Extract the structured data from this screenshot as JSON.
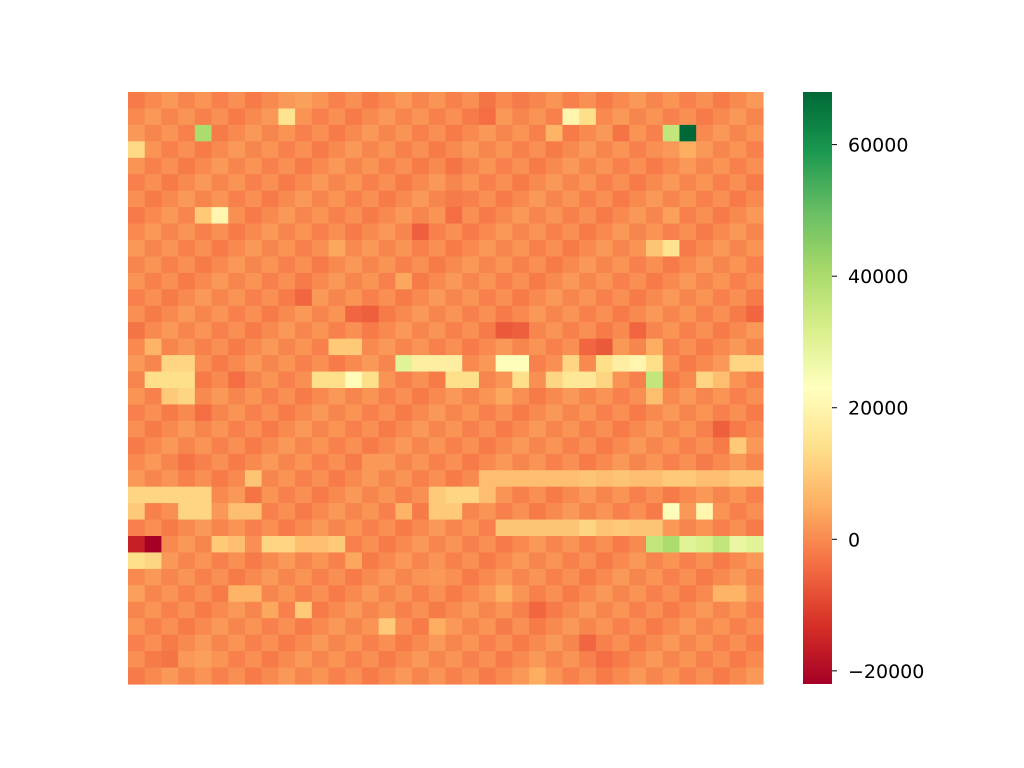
{
  "chart_data": {
    "type": "heatmap",
    "title": "",
    "xlabel": "",
    "ylabel": "",
    "n_cols": 38,
    "n_rows": 36,
    "colorscale": "RdYlGn",
    "colorbar": {
      "min": -22000,
      "max": 68000,
      "ticks": [
        60000,
        40000,
        20000,
        0,
        -20000
      ],
      "tick_labels": [
        "60000",
        "40000",
        "20000",
        "0",
        "−20000"
      ]
    },
    "base_value": 0,
    "cells": [
      {
        "r": 0,
        "c": 10,
        "v": 3000
      },
      {
        "r": 0,
        "c": 21,
        "v": -3000
      },
      {
        "r": 0,
        "c": 23,
        "v": -2000
      },
      {
        "r": 1,
        "c": 9,
        "v": 15000
      },
      {
        "r": 1,
        "c": 21,
        "v": -4000
      },
      {
        "r": 1,
        "c": 26,
        "v": 20000
      },
      {
        "r": 1,
        "c": 27,
        "v": 14000
      },
      {
        "r": 2,
        "c": 4,
        "v": 40000
      },
      {
        "r": 2,
        "c": 25,
        "v": 6000
      },
      {
        "r": 2,
        "c": 29,
        "v": -3000
      },
      {
        "r": 2,
        "c": 32,
        "v": 36000
      },
      {
        "r": 2,
        "c": 33,
        "v": 68000
      },
      {
        "r": 3,
        "c": 0,
        "v": 13000
      },
      {
        "r": 3,
        "c": 32,
        "v": 2000
      },
      {
        "r": 3,
        "c": 33,
        "v": 5000
      },
      {
        "r": 4,
        "c": 19,
        "v": -3000
      },
      {
        "r": 6,
        "c": 19,
        "v": -2000
      },
      {
        "r": 7,
        "c": 4,
        "v": 10000
      },
      {
        "r": 7,
        "c": 5,
        "v": 20000
      },
      {
        "r": 7,
        "c": 19,
        "v": -4000
      },
      {
        "r": 7,
        "c": 32,
        "v": 3000
      },
      {
        "r": 8,
        "c": 17,
        "v": -6000
      },
      {
        "r": 9,
        "c": 12,
        "v": 4000
      },
      {
        "r": 9,
        "c": 31,
        "v": 9000
      },
      {
        "r": 9,
        "c": 32,
        "v": 15000
      },
      {
        "r": 11,
        "c": 16,
        "v": 4000
      },
      {
        "r": 12,
        "c": 10,
        "v": -5000
      },
      {
        "r": 13,
        "c": 13,
        "v": -5000
      },
      {
        "r": 13,
        "c": 14,
        "v": -6000
      },
      {
        "r": 13,
        "c": 37,
        "v": -5000
      },
      {
        "r": 14,
        "c": 0,
        "v": -3000
      },
      {
        "r": 14,
        "c": 22,
        "v": -7000
      },
      {
        "r": 14,
        "c": 23,
        "v": -6000
      },
      {
        "r": 14,
        "c": 30,
        "v": -5000
      },
      {
        "r": 15,
        "c": 1,
        "v": 6000
      },
      {
        "r": 15,
        "c": 12,
        "v": 10000
      },
      {
        "r": 15,
        "c": 13,
        "v": 10000
      },
      {
        "r": 15,
        "c": 27,
        "v": -5000
      },
      {
        "r": 15,
        "c": 28,
        "v": -7000
      },
      {
        "r": 15,
        "c": 31,
        "v": 5000
      },
      {
        "r": 16,
        "c": 2,
        "v": 12000
      },
      {
        "r": 16,
        "c": 3,
        "v": 12000
      },
      {
        "r": 16,
        "c": 16,
        "v": 30000
      },
      {
        "r": 16,
        "c": 17,
        "v": 18000
      },
      {
        "r": 16,
        "c": 18,
        "v": 18000
      },
      {
        "r": 16,
        "c": 19,
        "v": 18000
      },
      {
        "r": 16,
        "c": 22,
        "v": 24000
      },
      {
        "r": 16,
        "c": 23,
        "v": 24000
      },
      {
        "r": 16,
        "c": 26,
        "v": 12000
      },
      {
        "r": 16,
        "c": 28,
        "v": 14000
      },
      {
        "r": 16,
        "c": 29,
        "v": 18000
      },
      {
        "r": 16,
        "c": 30,
        "v": 20000
      },
      {
        "r": 16,
        "c": 31,
        "v": 14000
      },
      {
        "r": 16,
        "c": 36,
        "v": 12000
      },
      {
        "r": 16,
        "c": 37,
        "v": 12000
      },
      {
        "r": 17,
        "c": 1,
        "v": 14000
      },
      {
        "r": 17,
        "c": 2,
        "v": 14000
      },
      {
        "r": 17,
        "c": 3,
        "v": 14000
      },
      {
        "r": 17,
        "c": 6,
        "v": -4000
      },
      {
        "r": 17,
        "c": 11,
        "v": 14000
      },
      {
        "r": 17,
        "c": 12,
        "v": 14000
      },
      {
        "r": 17,
        "c": 13,
        "v": 22000
      },
      {
        "r": 17,
        "c": 14,
        "v": 14000
      },
      {
        "r": 17,
        "c": 19,
        "v": 14000
      },
      {
        "r": 17,
        "c": 20,
        "v": 14000
      },
      {
        "r": 17,
        "c": 23,
        "v": 14000
      },
      {
        "r": 17,
        "c": 25,
        "v": 12000
      },
      {
        "r": 17,
        "c": 26,
        "v": 16000
      },
      {
        "r": 17,
        "c": 27,
        "v": 16000
      },
      {
        "r": 17,
        "c": 28,
        "v": 12000
      },
      {
        "r": 17,
        "c": 31,
        "v": 36000
      },
      {
        "r": 17,
        "c": 34,
        "v": 12000
      },
      {
        "r": 17,
        "c": 35,
        "v": 8000
      },
      {
        "r": 18,
        "c": 2,
        "v": 10000
      },
      {
        "r": 18,
        "c": 3,
        "v": 12000
      },
      {
        "r": 18,
        "c": 22,
        "v": 4000
      },
      {
        "r": 18,
        "c": 31,
        "v": 8000
      },
      {
        "r": 19,
        "c": 4,
        "v": -4000
      },
      {
        "r": 20,
        "c": 35,
        "v": -6000
      },
      {
        "r": 21,
        "c": 36,
        "v": 10000
      },
      {
        "r": 22,
        "c": 3,
        "v": -3000
      },
      {
        "r": 22,
        "c": 34,
        "v": -2000
      },
      {
        "r": 22,
        "c": 14,
        "v": 2000
      },
      {
        "r": 23,
        "c": 21,
        "v": 8000
      },
      {
        "r": 23,
        "c": 22,
        "v": 8000
      },
      {
        "r": 23,
        "c": 23,
        "v": 8000
      },
      {
        "r": 23,
        "c": 24,
        "v": 8000
      },
      {
        "r": 23,
        "c": 25,
        "v": 8000
      },
      {
        "r": 23,
        "c": 26,
        "v": 8000
      },
      {
        "r": 23,
        "c": 27,
        "v": 9000
      },
      {
        "r": 23,
        "c": 28,
        "v": 8000
      },
      {
        "r": 23,
        "c": 29,
        "v": 9000
      },
      {
        "r": 23,
        "c": 30,
        "v": 8000
      },
      {
        "r": 23,
        "c": 31,
        "v": 8000
      },
      {
        "r": 23,
        "c": 32,
        "v": 10000
      },
      {
        "r": 23,
        "c": 33,
        "v": 10000
      },
      {
        "r": 23,
        "c": 34,
        "v": 8000
      },
      {
        "r": 23,
        "c": 35,
        "v": 8000
      },
      {
        "r": 23,
        "c": 36,
        "v": 10000
      },
      {
        "r": 23,
        "c": 37,
        "v": 10000
      },
      {
        "r": 23,
        "c": 7,
        "v": 9000
      },
      {
        "r": 24,
        "c": 0,
        "v": 12000
      },
      {
        "r": 24,
        "c": 1,
        "v": 12000
      },
      {
        "r": 24,
        "c": 2,
        "v": 12000
      },
      {
        "r": 24,
        "c": 3,
        "v": 12000
      },
      {
        "r": 24,
        "c": 4,
        "v": 12000
      },
      {
        "r": 24,
        "c": 18,
        "v": 10000
      },
      {
        "r": 24,
        "c": 19,
        "v": 12000
      },
      {
        "r": 24,
        "c": 20,
        "v": 12000
      },
      {
        "r": 24,
        "c": 21,
        "v": 8000
      },
      {
        "r": 24,
        "c": 7,
        "v": -3000
      },
      {
        "r": 25,
        "c": 0,
        "v": 10000
      },
      {
        "r": 25,
        "c": 3,
        "v": 12000
      },
      {
        "r": 25,
        "c": 4,
        "v": 12000
      },
      {
        "r": 25,
        "c": 6,
        "v": 8000
      },
      {
        "r": 25,
        "c": 7,
        "v": 8000
      },
      {
        "r": 25,
        "c": 16,
        "v": 6000
      },
      {
        "r": 25,
        "c": 18,
        "v": 10000
      },
      {
        "r": 25,
        "c": 19,
        "v": 10000
      },
      {
        "r": 25,
        "c": 32,
        "v": 24000
      },
      {
        "r": 25,
        "c": 34,
        "v": 20000
      },
      {
        "r": 26,
        "c": 22,
        "v": 9000
      },
      {
        "r": 26,
        "c": 23,
        "v": 9000
      },
      {
        "r": 26,
        "c": 24,
        "v": 9000
      },
      {
        "r": 26,
        "c": 25,
        "v": 9000
      },
      {
        "r": 26,
        "c": 26,
        "v": 9000
      },
      {
        "r": 26,
        "c": 27,
        "v": 12000
      },
      {
        "r": 26,
        "c": 28,
        "v": 9000
      },
      {
        "r": 26,
        "c": 29,
        "v": 10000
      },
      {
        "r": 26,
        "c": 30,
        "v": 9000
      },
      {
        "r": 26,
        "c": 31,
        "v": 9000
      },
      {
        "r": 27,
        "c": 0,
        "v": -16000
      },
      {
        "r": 27,
        "c": 1,
        "v": -22000
      },
      {
        "r": 27,
        "c": 5,
        "v": 10000
      },
      {
        "r": 27,
        "c": 6,
        "v": 8000
      },
      {
        "r": 27,
        "c": 8,
        "v": 12000
      },
      {
        "r": 27,
        "c": 9,
        "v": 12000
      },
      {
        "r": 27,
        "c": 10,
        "v": 8000
      },
      {
        "r": 27,
        "c": 11,
        "v": 8000
      },
      {
        "r": 27,
        "c": 12,
        "v": 10000
      },
      {
        "r": 27,
        "c": 31,
        "v": 36000
      },
      {
        "r": 27,
        "c": 32,
        "v": 40000
      },
      {
        "r": 27,
        "c": 33,
        "v": 30000
      },
      {
        "r": 27,
        "c": 34,
        "v": 32000
      },
      {
        "r": 27,
        "c": 35,
        "v": 36000
      },
      {
        "r": 27,
        "c": 36,
        "v": 28000
      },
      {
        "r": 27,
        "c": 37,
        "v": 30000
      },
      {
        "r": 28,
        "c": 0,
        "v": 14000
      },
      {
        "r": 28,
        "c": 1,
        "v": 12000
      },
      {
        "r": 28,
        "c": 13,
        "v": 4000
      },
      {
        "r": 29,
        "c": 18,
        "v": 2000
      },
      {
        "r": 30,
        "c": 6,
        "v": 6000
      },
      {
        "r": 30,
        "c": 7,
        "v": 6000
      },
      {
        "r": 30,
        "c": 22,
        "v": 5000
      },
      {
        "r": 30,
        "c": 35,
        "v": 6000
      },
      {
        "r": 30,
        "c": 36,
        "v": 6000
      },
      {
        "r": 30,
        "c": 0,
        "v": 3000
      },
      {
        "r": 31,
        "c": 8,
        "v": 4000
      },
      {
        "r": 31,
        "c": 10,
        "v": 10000
      },
      {
        "r": 31,
        "c": 24,
        "v": -5000
      },
      {
        "r": 32,
        "c": 15,
        "v": 10000
      },
      {
        "r": 32,
        "c": 18,
        "v": 5000
      },
      {
        "r": 32,
        "c": 22,
        "v": -2000
      },
      {
        "r": 33,
        "c": 27,
        "v": -5000
      },
      {
        "r": 34,
        "c": 2,
        "v": -3000
      },
      {
        "r": 34,
        "c": 4,
        "v": 3000
      },
      {
        "r": 34,
        "c": 28,
        "v": -4000
      },
      {
        "r": 35,
        "c": 24,
        "v": 5000
      }
    ]
  }
}
